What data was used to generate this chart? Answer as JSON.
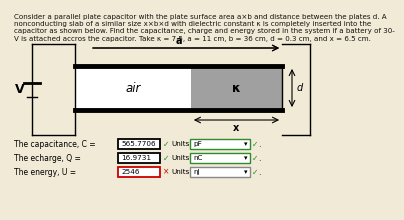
{
  "bg_color": "#f0ead6",
  "title_line1": "Consider a parallel plate capacitor with the plate surface area a×b and distance between the plates d. A",
  "title_line2": "nonconducting slab of a similar size x×b×d with dielectric constant κ is completely inserted into the",
  "title_line3": "capacitor as shown below. Find the capacitance, charge and energy stored in the system if a battery of 30-",
  "title_line4": "V is attached accros the capacitor. Take κ = 7.5, a = 11 cm, b = 36 cm, d = 0.3 cm, and x = 6.5 cm.",
  "V_label": "V",
  "air_label": "air",
  "K_label": "κ",
  "d_label": "d",
  "a_label": "a",
  "x_label": "x",
  "dielectric_color": "#a0a0a0",
  "air_color": "#ffffff",
  "capacitance_label": "The capacitance, C =",
  "capacitance_value": "565.7706",
  "capacitance_units": "pF",
  "capacitance_correct": true,
  "charge_label": "The echarge, Q =",
  "charge_value": "16.9731",
  "charge_units": "nC",
  "charge_correct": true,
  "energy_label": "The energy, U =",
  "energy_value": "2546",
  "energy_units": "nJ",
  "energy_correct": false,
  "green": "#2e8b2e",
  "red": "#cc0000",
  "check_mark": "✓",
  "cross_mark": "×"
}
